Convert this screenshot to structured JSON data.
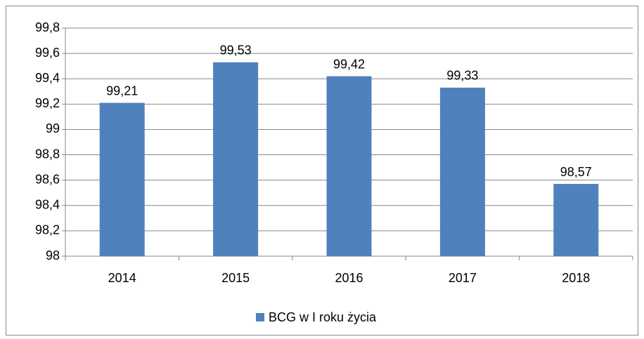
{
  "chart_data": {
    "type": "bar",
    "categories": [
      "2014",
      "2015",
      "2016",
      "2017",
      "2018"
    ],
    "series": [
      {
        "name": "BCG w I roku  życia",
        "color": "#4f81bd",
        "values": [
          99.21,
          99.53,
          99.42,
          99.33,
          98.57
        ],
        "value_labels": [
          "99,21",
          "99,53",
          "99,42",
          "99,33",
          "98,57"
        ]
      }
    ],
    "ylim": [
      98,
      99.8
    ],
    "yticks": [
      98,
      {
        "value": 98.2,
        "label": "98,2"
      },
      {
        "value": 98.4,
        "label": "98,4"
      },
      {
        "value": 98.6,
        "label": "98,6"
      },
      {
        "value": 98.8,
        "label": "98,8"
      },
      99,
      {
        "value": 99.2,
        "label": "99,2"
      },
      {
        "value": 99.4,
        "label": "99,4"
      },
      {
        "value": 99.6,
        "label": "99,6"
      },
      {
        "value": 99.8,
        "label": "99,8"
      }
    ],
    "grid": true,
    "legend": "bottom"
  }
}
